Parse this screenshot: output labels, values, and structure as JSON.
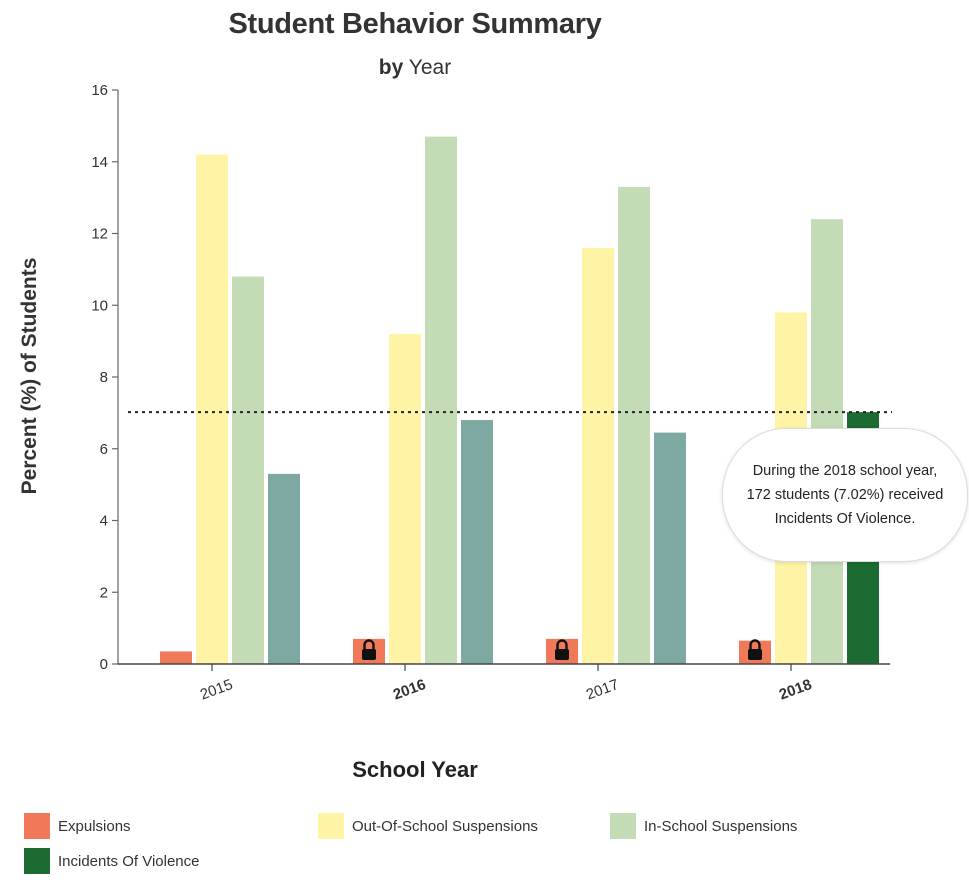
{
  "chart_data": {
    "type": "bar",
    "title": "Student Behavior Summary",
    "subtitle_bold": "by",
    "subtitle_rest": "Year",
    "xlabel": "School Year",
    "ylabel": "Percent (%) of Students",
    "ylim": [
      0,
      16
    ],
    "yticks": [
      0,
      2,
      4,
      6,
      8,
      10,
      12,
      14,
      16
    ],
    "categories": [
      "2015",
      "2016",
      "2017",
      "2018"
    ],
    "category_bold": [
      false,
      true,
      false,
      true
    ],
    "series": [
      {
        "name": "Expulsions",
        "color": "#f0795a",
        "values": [
          0.35,
          0.7,
          0.7,
          0.65
        ],
        "locked": [
          false,
          true,
          true,
          true
        ]
      },
      {
        "name": "Out-Of-School Suspensions",
        "color": "#fff3a6",
        "values": [
          14.2,
          9.2,
          11.6,
          9.8
        ]
      },
      {
        "name": "In-School Suspensions",
        "color": "#c4dcb5",
        "values": [
          10.8,
          14.7,
          13.3,
          12.4
        ]
      },
      {
        "name": "Incidents Of Violence",
        "color": "#7ea8a2",
        "highlight_color": "#1b6b32",
        "values": [
          5.3,
          6.8,
          6.45,
          7.02
        ],
        "highlight": [
          false,
          false,
          false,
          true
        ]
      }
    ],
    "reference_line": 7.02,
    "grid": false,
    "legend_position": "bottom"
  },
  "tooltip": {
    "text": "During the 2018 school year, 172 students (7.02%) received Incidents Of Violence."
  },
  "legend": [
    {
      "label": "Expulsions",
      "color": "#f0795a"
    },
    {
      "label": "Out-Of-School Suspensions",
      "color": "#fff3a6"
    },
    {
      "label": "In-School Suspensions",
      "color": "#c4dcb5"
    },
    {
      "label": "Incidents Of Violence",
      "color": "#1b6b32"
    }
  ]
}
